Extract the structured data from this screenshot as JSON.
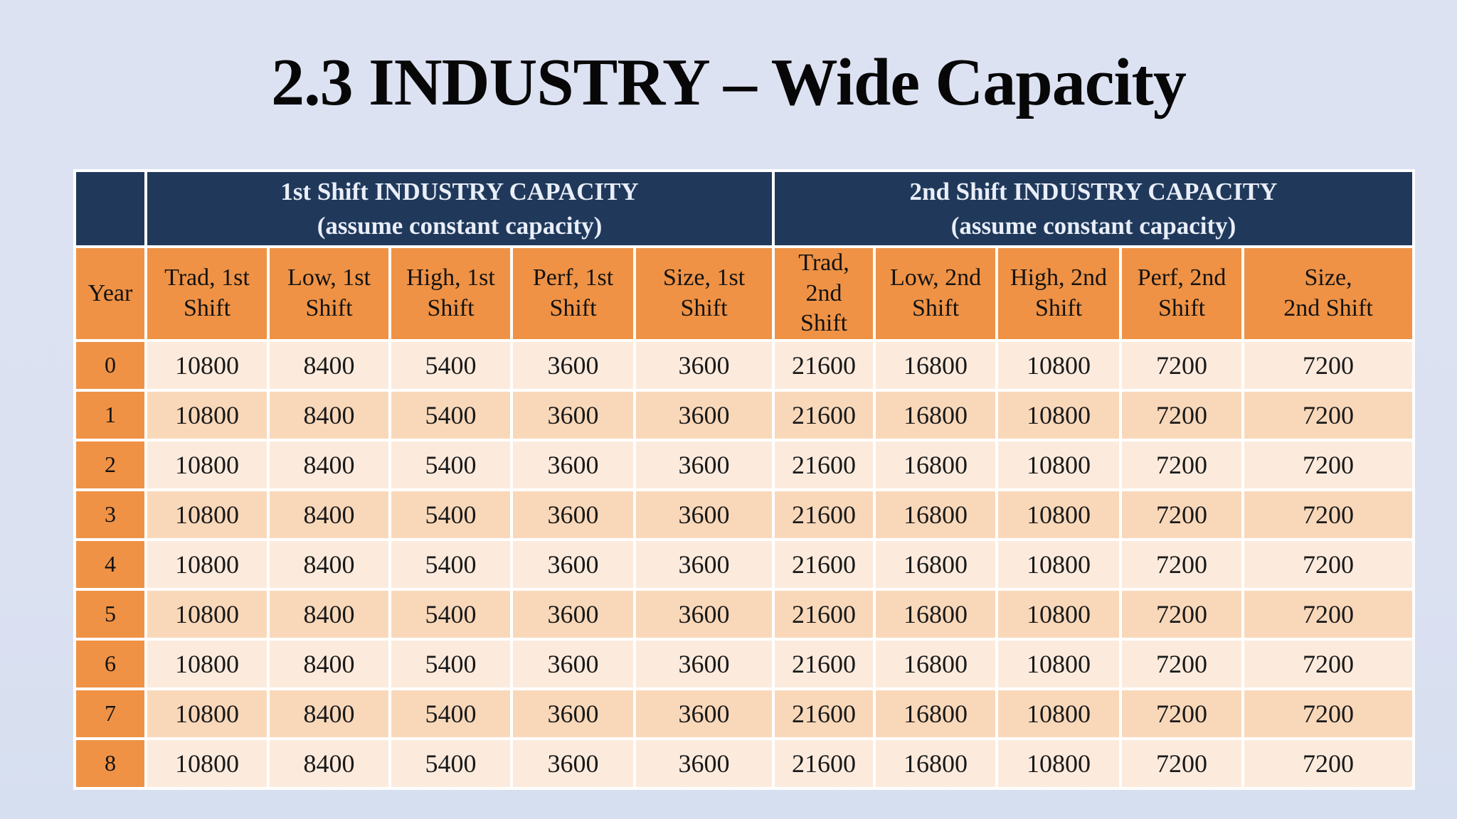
{
  "slide": {
    "title": "2.3 INDUSTRY – Wide Capacity"
  },
  "table": {
    "group_headers": [
      {
        "title": "1st Shift INDUSTRY CAPACITY",
        "subtitle": "(assume constant capacity)"
      },
      {
        "title": "2nd Shift INDUSTRY CAPACITY",
        "subtitle": "(assume constant capacity)"
      }
    ],
    "column_headers": [
      "Year",
      "Trad, 1st\nShift",
      "Low, 1st\nShift",
      "High, 1st\nShift",
      "Perf, 1st\nShift",
      "Size, 1st Shift",
      "Trad, 2nd\nShift",
      "Low, 2nd\nShift",
      "High, 2nd\nShift",
      "Perf, 2nd\nShift",
      "Size,\n2nd Shift"
    ],
    "rows": [
      {
        "year": "0",
        "values": [
          "10800",
          "8400",
          "5400",
          "3600",
          "3600",
          "21600",
          "16800",
          "10800",
          "7200",
          "7200"
        ]
      },
      {
        "year": "1",
        "values": [
          "10800",
          "8400",
          "5400",
          "3600",
          "3600",
          "21600",
          "16800",
          "10800",
          "7200",
          "7200"
        ]
      },
      {
        "year": "2",
        "values": [
          "10800",
          "8400",
          "5400",
          "3600",
          "3600",
          "21600",
          "16800",
          "10800",
          "7200",
          "7200"
        ]
      },
      {
        "year": "3",
        "values": [
          "10800",
          "8400",
          "5400",
          "3600",
          "3600",
          "21600",
          "16800",
          "10800",
          "7200",
          "7200"
        ]
      },
      {
        "year": "4",
        "values": [
          "10800",
          "8400",
          "5400",
          "3600",
          "3600",
          "21600",
          "16800",
          "10800",
          "7200",
          "7200"
        ]
      },
      {
        "year": "5",
        "values": [
          "10800",
          "8400",
          "5400",
          "3600",
          "3600",
          "21600",
          "16800",
          "10800",
          "7200",
          "7200"
        ]
      },
      {
        "year": "6",
        "values": [
          "10800",
          "8400",
          "5400",
          "3600",
          "3600",
          "21600",
          "16800",
          "10800",
          "7200",
          "7200"
        ]
      },
      {
        "year": "7",
        "values": [
          "10800",
          "8400",
          "5400",
          "3600",
          "3600",
          "21600",
          "16800",
          "10800",
          "7200",
          "7200"
        ]
      },
      {
        "year": "8",
        "values": [
          "10800",
          "8400",
          "5400",
          "3600",
          "3600",
          "21600",
          "16800",
          "10800",
          "7200",
          "7200"
        ]
      }
    ]
  },
  "colors": {
    "background": "#dbe1f1",
    "header_navy": "#20395b",
    "header_orange": "#ef9245",
    "row_light": "#fcebdd",
    "row_dark": "#f9d8ba",
    "grid": "#ffffff",
    "header_text": "#e9eef8",
    "body_text": "#191919"
  }
}
